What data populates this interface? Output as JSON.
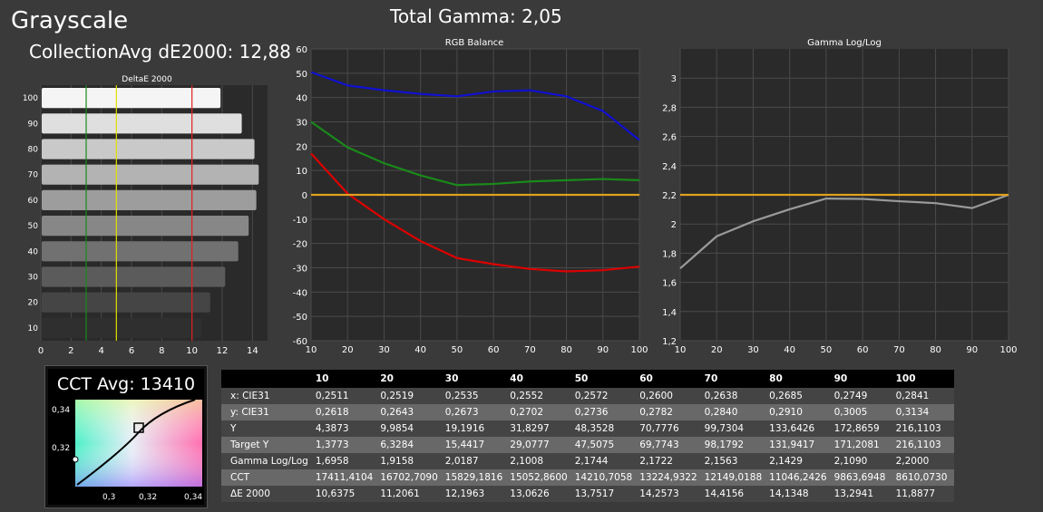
{
  "header": {
    "title": "Grayscale",
    "total_gamma": "Total Gamma: 2,05",
    "avg_de": "CollectionAvg dE2000: 12,88"
  },
  "colors": {
    "background": "#3a3a3a",
    "plot_bg": "#2a2a2a",
    "red": "#dd0000",
    "green": "#1a8a1a",
    "blue": "#1010d0",
    "target_line": "#e0a020"
  },
  "cct": {
    "title": "CCT Avg: 13410",
    "x_ticks": [
      "0,3",
      "0,32",
      "0,34"
    ],
    "y_ticks": [
      "0,34",
      "0,32"
    ]
  },
  "chart_data": [
    {
      "type": "bar",
      "orientation": "horizontal",
      "title": "DeltaE 2000",
      "categories": [
        "100",
        "90",
        "80",
        "70",
        "60",
        "50",
        "40",
        "30",
        "20",
        "10"
      ],
      "values": [
        11.8877,
        13.2941,
        14.1348,
        14.4156,
        14.2573,
        13.7517,
        13.0626,
        12.1963,
        11.2061,
        10.6375
      ],
      "xlim": [
        0,
        15
      ],
      "x_ticks": [
        "0",
        "2",
        "4",
        "6",
        "8",
        "10",
        "12",
        "14"
      ],
      "threshold_lines": [
        {
          "value": 3,
          "color": "#1a8a1a"
        },
        {
          "value": 5,
          "color": "#e0e000"
        },
        {
          "value": 10,
          "color": "#dd2222"
        }
      ]
    },
    {
      "type": "line",
      "title": "RGB Balance",
      "x": [
        10,
        20,
        30,
        40,
        50,
        60,
        70,
        80,
        90,
        100
      ],
      "xlim": [
        10,
        100
      ],
      "ylim": [
        -60,
        60
      ],
      "x_ticks": [
        "10",
        "20",
        "30",
        "40",
        "50",
        "60",
        "70",
        "80",
        "90",
        "100"
      ],
      "y_ticks": [
        "60",
        "50",
        "40",
        "30",
        "20",
        "10",
        "0",
        "-10",
        "-20",
        "-30",
        "-40",
        "-50",
        "-60"
      ],
      "series": [
        {
          "color": "#1010d0",
          "values": [
            50.5,
            45,
            43,
            41.5,
            40.5,
            42.5,
            43,
            40.5,
            34.5,
            22.5
          ]
        },
        {
          "color": "#1a8a1a",
          "values": [
            30,
            19.5,
            13,
            8,
            4,
            4.5,
            5.5,
            6,
            6.5,
            6
          ]
        },
        {
          "color": "#dd0000",
          "values": [
            17,
            0.5,
            -10,
            -19,
            -26,
            -28.5,
            -30.5,
            -31.5,
            -31,
            -29.5
          ]
        },
        {
          "color": "#e0a020",
          "values": [
            0,
            0,
            0,
            0,
            0,
            0,
            0,
            0,
            0,
            0
          ]
        }
      ]
    },
    {
      "type": "line",
      "title": "Gamma Log/Log",
      "x": [
        10,
        20,
        30,
        40,
        50,
        60,
        70,
        80,
        90,
        100
      ],
      "xlim": [
        10,
        100
      ],
      "ylim": [
        1.2,
        3.2
      ],
      "x_ticks": [
        "10",
        "20",
        "30",
        "40",
        "50",
        "60",
        "70",
        "80",
        "90",
        "100"
      ],
      "y_ticks": [
        "3",
        "2,8",
        "2,6",
        "2,4",
        "2,2",
        "2",
        "1,8",
        "1,6",
        "1,4",
        "1,2"
      ],
      "series": [
        {
          "color": "#9a9a9a",
          "values": [
            1.6958,
            1.9158,
            2.0187,
            2.1008,
            2.1744,
            2.1722,
            2.1563,
            2.1429,
            2.109,
            2.2
          ]
        },
        {
          "color": "#e0a020",
          "values": [
            2.2,
            2.2,
            2.2,
            2.2,
            2.2,
            2.2,
            2.2,
            2.2,
            2.2,
            2.2
          ]
        }
      ]
    },
    {
      "type": "table",
      "columns": [
        "",
        "10",
        "20",
        "30",
        "40",
        "50",
        "60",
        "70",
        "80",
        "90",
        "100"
      ],
      "rows": [
        [
          "x: CIE31",
          "0,2511",
          "0,2519",
          "0,2535",
          "0,2552",
          "0,2572",
          "0,2600",
          "0,2638",
          "0,2685",
          "0,2749",
          "0,2841"
        ],
        [
          "y: CIE31",
          "0,2618",
          "0,2643",
          "0,2673",
          "0,2702",
          "0,2736",
          "0,2782",
          "0,2840",
          "0,2910",
          "0,3005",
          "0,3134"
        ],
        [
          "Y",
          "4,3873",
          "9,9854",
          "19,1916",
          "31,8297",
          "48,3528",
          "70,7776",
          "99,7304",
          "133,6426",
          "172,8659",
          "216,1103"
        ],
        [
          "Target Y",
          "1,3773",
          "6,3284",
          "15,4417",
          "29,0777",
          "47,5075",
          "69,7743",
          "98,1792",
          "131,9417",
          "171,2081",
          "216,1103"
        ],
        [
          "Gamma Log/Log",
          "1,6958",
          "1,9158",
          "2,0187",
          "2,1008",
          "2,1744",
          "2,1722",
          "2,1563",
          "2,1429",
          "2,1090",
          "2,2000"
        ],
        [
          "CCT",
          "17411,4104",
          "16702,7090",
          "15829,1816",
          "15052,8600",
          "14210,7058",
          "13224,9322",
          "12149,0188",
          "11046,2426",
          "9863,6948",
          "8610,0730"
        ],
        [
          "ΔE 2000",
          "10,6375",
          "11,2061",
          "12,1963",
          "13,0626",
          "13,7517",
          "14,2573",
          "14,4156",
          "14,1348",
          "13,2941",
          "11,8877"
        ]
      ]
    }
  ]
}
